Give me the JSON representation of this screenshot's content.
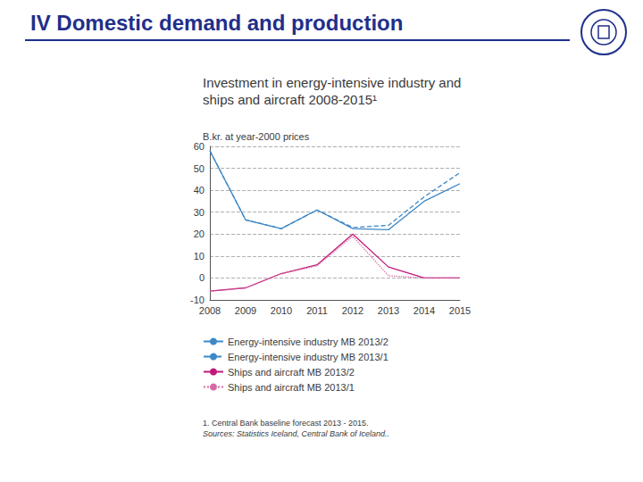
{
  "header": {
    "title": "IV Domestic demand and production"
  },
  "chart_data": {
    "type": "line",
    "title": "Investment in energy-intensive industry and ships and aircraft 2008-2015¹",
    "subtitle": "B.kr. at year-2000 prices",
    "footnotes": [
      "1. Central Bank baseline forecast 2013 - 2015.",
      "Sources: Statistics Iceland, Central Bank of Iceland.."
    ],
    "categories": [
      "2008",
      "2009",
      "2010",
      "2011",
      "2012",
      "2013",
      "2014",
      "2015"
    ],
    "series": [
      {
        "name": "Energy-intensive industry MB 2013/2",
        "color": "#3d88c6",
        "line_style": "solid",
        "values": [
          58,
          26.5,
          22.5,
          31,
          22.5,
          22,
          35,
          43
        ]
      },
      {
        "name": "Energy-intensive industry MB 2013/1",
        "color": "#3d88c6",
        "line_style": "dashed",
        "values": [
          58,
          26.5,
          22.5,
          31,
          23,
          24,
          37,
          48
        ]
      },
      {
        "name": "Ships and aircraft MB 2013/2",
        "color": "#c0197a",
        "line_style": "solid",
        "values": [
          -6,
          -4.5,
          2,
          6,
          20,
          5,
          0,
          0
        ]
      },
      {
        "name": "Ships and aircraft MB 2013/1",
        "color": "#d66aa3",
        "line_style": "dotted",
        "values": [
          -6,
          -4.5,
          2,
          5.5,
          19,
          1,
          0,
          0
        ]
      }
    ],
    "ylim": [
      -10,
      60
    ],
    "yticks": [
      -10,
      0,
      10,
      20,
      30,
      40,
      50,
      60
    ],
    "grid": true,
    "legend": "bottom"
  }
}
